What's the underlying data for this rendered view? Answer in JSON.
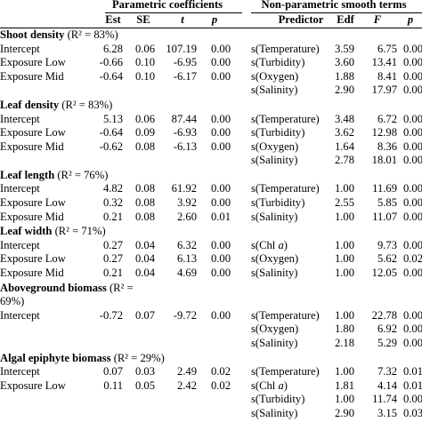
{
  "headers": {
    "parametric": "Parametric coefficients",
    "nonparametric": "Non-parametric smooth terms",
    "est": "Est",
    "se": "SE",
    "t": "t",
    "p": "p",
    "predictor": "Predictor",
    "edf": "Edf",
    "F": "F",
    "p2": "p"
  },
  "sections": [
    {
      "title_bold": "Shoot density",
      "title_rest": " (R² = 83%)",
      "param_rows": [
        {
          "label": "Intercept",
          "est": "6.28",
          "se": "0.06",
          "t": "107.19",
          "p": "0.00"
        },
        {
          "label": "Exposure Low",
          "est": "-0.66",
          "se": "0.10",
          "t": "-6.95",
          "p": "0.00"
        },
        {
          "label": "Exposure Mid",
          "est": "-0.64",
          "se": "0.10",
          "t": "-6.17",
          "p": "0.00"
        }
      ],
      "smooth_rows": [
        {
          "pred": "s(Temperature)",
          "edf": "3.59",
          "F": "6.75",
          "p": "0.00"
        },
        {
          "pred": "s(Turbidity)",
          "edf": "3.60",
          "F": "13.41",
          "p": "0.00"
        },
        {
          "pred": "s(Oxygen)",
          "edf": "1.88",
          "F": "8.41",
          "p": "0.00"
        },
        {
          "pred": "s(Salinity)",
          "edf": "2.90",
          "F": "17.97",
          "p": "0.00"
        }
      ]
    },
    {
      "title_bold": "Leaf density",
      "title_rest": " (R² = 83%)",
      "param_rows": [
        {
          "label": "Intercept",
          "est": "5.13",
          "se": "0.06",
          "t": "87.44",
          "p": "0.00"
        },
        {
          "label": "Exposure Low",
          "est": "-0.64",
          "se": "0.09",
          "t": "-6.93",
          "p": "0.00"
        },
        {
          "label": "Exposure Mid",
          "est": "-0.62",
          "se": "0.08",
          "t": "-6.13",
          "p": "0.00"
        }
      ],
      "smooth_rows": [
        {
          "pred": "s(Temperature)",
          "edf": "3.48",
          "F": "6.72",
          "p": "0.00"
        },
        {
          "pred": "s(Turbidity)",
          "edf": "3.62",
          "F": "12.98",
          "p": "0.00"
        },
        {
          "pred": "s(Oxygen)",
          "edf": "1.64",
          "F": "8.36",
          "p": "0.00"
        },
        {
          "pred": "s(Salinity)",
          "edf": "2.78",
          "F": "18.01",
          "p": "0.00"
        }
      ]
    },
    {
      "title_bold": "Leaf length",
      "title_rest": " (R² = 76%)",
      "param_rows": [
        {
          "label": "Intercept",
          "est": "4.82",
          "se": "0.08",
          "t": "61.92",
          "p": "0.00"
        },
        {
          "label": "Exposure Low",
          "est": "0.32",
          "se": "0.08",
          "t": "3.92",
          "p": "0.00"
        },
        {
          "label": "Exposure Mid",
          "est": "0.21",
          "se": "0.08",
          "t": "2.60",
          "p": "0.01"
        }
      ],
      "smooth_rows": [
        {
          "pred": "s(Temperature)",
          "edf": "1.00",
          "F": "11.69",
          "p": "0.00"
        },
        {
          "pred": "s(Turbidity)",
          "edf": "2.55",
          "F": "5.85",
          "p": "0.00"
        },
        {
          "pred": "s(Salinity)",
          "edf": "1.00",
          "F": "11.07",
          "p": "0.00"
        }
      ]
    },
    {
      "title_bold": "Leaf width",
      "title_rest": " (R² = 71%)",
      "param_rows": [
        {
          "label": "Intercept",
          "est": "0.27",
          "se": "0.04",
          "t": "6.32",
          "p": "0.00"
        },
        {
          "label": "Exposure Low",
          "est": "0.27",
          "se": "0.04",
          "t": "6.13",
          "p": "0.00"
        },
        {
          "label": "Exposure Mid",
          "est": "0.21",
          "se": "0.04",
          "t": "4.69",
          "p": "0.00"
        }
      ],
      "smooth_rows": [
        {
          "pred": "s(Chl ",
          "pred_it": "a",
          "pred_end": ")",
          "edf": "1.00",
          "F": "9.73",
          "p": "0.00"
        },
        {
          "pred": "s(Oxygen)",
          "edf": "1.00",
          "F": "5.62",
          "p": "0.02"
        },
        {
          "pred": "s(Salinity)",
          "edf": "1.00",
          "F": "12.05",
          "p": "0.00"
        }
      ]
    },
    {
      "title_bold": "Aboveground biomass",
      "title_rest": " (R² =",
      "title_line2": "69%)",
      "param_rows": [
        {
          "label": "Intercept",
          "est": "-0.72",
          "se": "0.07",
          "t": "-9.72",
          "p": "0.00"
        }
      ],
      "smooth_rows": [
        {
          "pred": "s(Temperature)",
          "edf": "1.00",
          "F": "22.78",
          "p": "0.00"
        },
        {
          "pred": "s(Oxygen)",
          "edf": "1.80",
          "F": "6.92",
          "p": "0.00"
        },
        {
          "pred": "s(Salinity)",
          "edf": "2.18",
          "F": "5.29",
          "p": "0.00"
        }
      ]
    },
    {
      "title_bold": "Algal epiphyte biomass",
      "title_rest": " (R² = 29%)",
      "param_rows": [
        {
          "label": "Intercept",
          "est": "0.07",
          "se": "0.03",
          "t": "2.49",
          "p": "0.02"
        },
        {
          "label": "Exposure Low",
          "est": "0.11",
          "se": "0.05",
          "t": "2.42",
          "p": "0.02"
        }
      ],
      "smooth_rows": [
        {
          "pred": "s(Temperature)",
          "edf": "1.00",
          "F": "7.32",
          "p": "0.01"
        },
        {
          "pred": "s(Chl ",
          "pred_it": "a",
          "pred_end": ")",
          "edf": "1.81",
          "F": "4.14",
          "p": "0.01"
        },
        {
          "pred": "s(Turbidity)",
          "edf": "1.00",
          "F": "11.74",
          "p": "0.00"
        },
        {
          "pred": "s(Salinity)",
          "edf": "2.90",
          "F": "3.15",
          "p": "0.03"
        }
      ]
    }
  ]
}
